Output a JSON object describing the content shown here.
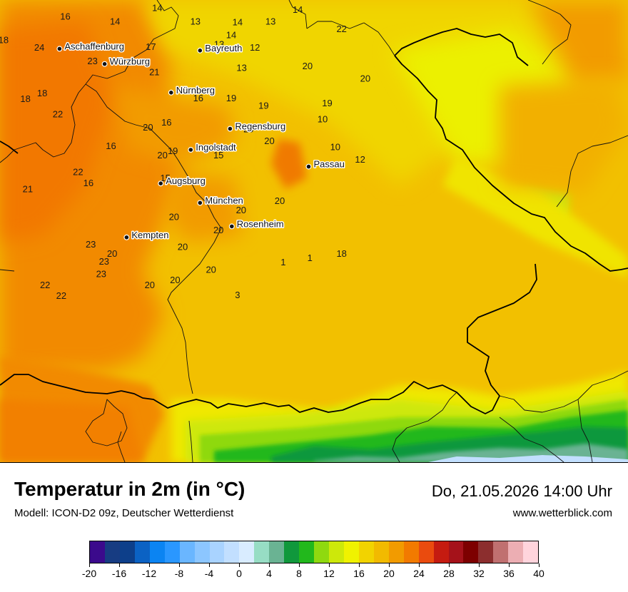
{
  "map": {
    "cities": [
      {
        "name": "Aschaffenburg",
        "lon": 9.15,
        "lat": 49.97
      },
      {
        "name": "Würzburg",
        "lon": 9.93,
        "lat": 49.79
      },
      {
        "name": "Bayreuth",
        "lon": 11.58,
        "lat": 49.95
      },
      {
        "name": "Nürnberg",
        "lon": 11.08,
        "lat": 49.45
      },
      {
        "name": "Regensburg",
        "lon": 12.1,
        "lat": 49.02
      },
      {
        "name": "Ingolstadt",
        "lon": 11.42,
        "lat": 48.77
      },
      {
        "name": "Passau",
        "lon": 13.46,
        "lat": 48.57
      },
      {
        "name": "Augsburg",
        "lon": 10.9,
        "lat": 48.37
      },
      {
        "name": "München",
        "lon": 11.58,
        "lat": 48.14
      },
      {
        "name": "Rosenheim",
        "lon": 12.13,
        "lat": 47.86
      },
      {
        "name": "Kempten",
        "lon": 10.31,
        "lat": 47.73
      }
    ],
    "temperature_labels": [
      {
        "value": "16",
        "lon": 9.25,
        "lat": 50.36
      },
      {
        "value": "14",
        "lon": 10.11,
        "lat": 50.3
      },
      {
        "value": "14",
        "lon": 10.84,
        "lat": 50.46
      },
      {
        "value": "18",
        "lon": 8.18,
        "lat": 50.08
      },
      {
        "value": "24",
        "lon": 8.8,
        "lat": 49.99
      },
      {
        "value": "23",
        "lon": 9.72,
        "lat": 49.83
      },
      {
        "value": "17",
        "lon": 10.73,
        "lat": 50.0
      },
      {
        "value": "21",
        "lon": 10.79,
        "lat": 49.7
      },
      {
        "value": "13",
        "lon": 11.5,
        "lat": 50.3
      },
      {
        "value": "14",
        "lon": 12.23,
        "lat": 50.29
      },
      {
        "value": "13",
        "lon": 12.8,
        "lat": 50.3
      },
      {
        "value": "14",
        "lon": 13.27,
        "lat": 50.44
      },
      {
        "value": "14",
        "lon": 12.12,
        "lat": 50.14
      },
      {
        "value": "13",
        "lon": 11.91,
        "lat": 50.03
      },
      {
        "value": "12",
        "lon": 12.53,
        "lat": 49.99
      },
      {
        "value": "13",
        "lon": 12.3,
        "lat": 49.75
      },
      {
        "value": "20",
        "lon": 13.44,
        "lat": 49.77
      },
      {
        "value": "22",
        "lon": 14.03,
        "lat": 50.21
      },
      {
        "value": "20",
        "lon": 14.44,
        "lat": 49.62
      },
      {
        "value": "18",
        "lon": 8.56,
        "lat": 49.38
      },
      {
        "value": "18",
        "lon": 8.85,
        "lat": 49.45
      },
      {
        "value": "16",
        "lon": 11.55,
        "lat": 49.39
      },
      {
        "value": "19",
        "lon": 12.12,
        "lat": 49.39
      },
      {
        "value": "19",
        "lon": 12.68,
        "lat": 49.3
      },
      {
        "value": "19",
        "lon": 13.78,
        "lat": 49.33
      },
      {
        "value": "22",
        "lon": 9.12,
        "lat": 49.2
      },
      {
        "value": "16",
        "lon": 11.0,
        "lat": 49.1
      },
      {
        "value": "20",
        "lon": 10.68,
        "lat": 49.04
      },
      {
        "value": "10",
        "lon": 13.7,
        "lat": 49.14
      },
      {
        "value": "20",
        "lon": 12.42,
        "lat": 49.02
      },
      {
        "value": "20",
        "lon": 12.78,
        "lat": 48.88
      },
      {
        "value": "10",
        "lon": 13.92,
        "lat": 48.81
      },
      {
        "value": "12",
        "lon": 14.35,
        "lat": 48.66
      },
      {
        "value": "16",
        "lon": 10.04,
        "lat": 48.82
      },
      {
        "value": "20",
        "lon": 10.93,
        "lat": 48.71
      },
      {
        "value": "19",
        "lon": 11.11,
        "lat": 48.76
      },
      {
        "value": "15",
        "lon": 11.9,
        "lat": 48.71
      },
      {
        "value": "22",
        "lon": 9.47,
        "lat": 48.51
      },
      {
        "value": "16",
        "lon": 9.65,
        "lat": 48.38
      },
      {
        "value": "21",
        "lon": 8.6,
        "lat": 48.31
      },
      {
        "value": "15",
        "lon": 10.98,
        "lat": 48.44
      },
      {
        "value": "20",
        "lon": 12.96,
        "lat": 48.17
      },
      {
        "value": "20",
        "lon": 12.29,
        "lat": 48.06
      },
      {
        "value": "20",
        "lon": 11.13,
        "lat": 47.98
      },
      {
        "value": "23",
        "lon": 9.69,
        "lat": 47.65
      },
      {
        "value": "20",
        "lon": 11.28,
        "lat": 47.62
      },
      {
        "value": "20",
        "lon": 11.9,
        "lat": 47.82
      },
      {
        "value": "20",
        "lon": 10.06,
        "lat": 47.54
      },
      {
        "value": "23",
        "lon": 9.92,
        "lat": 47.45
      },
      {
        "value": "23",
        "lon": 9.87,
        "lat": 47.3
      },
      {
        "value": "1",
        "lon": 13.02,
        "lat": 47.44
      },
      {
        "value": "1",
        "lon": 13.48,
        "lat": 47.49
      },
      {
        "value": "18",
        "lon": 14.03,
        "lat": 47.54
      },
      {
        "value": "20",
        "lon": 11.77,
        "lat": 47.35
      },
      {
        "value": "20",
        "lon": 11.15,
        "lat": 47.23
      },
      {
        "value": "20",
        "lon": 10.71,
        "lat": 47.17
      },
      {
        "value": "22",
        "lon": 8.9,
        "lat": 47.17
      },
      {
        "value": "22",
        "lon": 9.18,
        "lat": 47.04
      },
      {
        "value": "3",
        "lon": 12.23,
        "lat": 47.05
      }
    ]
  },
  "header": {
    "title": "Temperatur in 2m (in °C)",
    "subtitle": "Modell: ICON-D2 09z, Deutscher Wetterdienst",
    "datetime": "Do, 21.05.2026 14:00 Uhr",
    "website": "www.wetterblick.com"
  },
  "legend": {
    "colors": [
      "#3b0a8c",
      "#173c82",
      "#0d3f8a",
      "#0b62c4",
      "#0b84f2",
      "#2a97ff",
      "#6ab6ff",
      "#8cc6ff",
      "#a9d3ff",
      "#c2dfff",
      "#d9ecff",
      "#97ddc4",
      "#6ab393",
      "#10983c",
      "#22b81c",
      "#8fd90f",
      "#cde80a",
      "#f0f200",
      "#f2d300",
      "#f2ba00",
      "#f29b00",
      "#f27a00",
      "#ea4b0e",
      "#c51b10",
      "#a5121a",
      "#7d0000",
      "#8c2e2e",
      "#c07070",
      "#ecaeb3",
      "#ffd4dc"
    ],
    "ticks": [
      "-20",
      "-16",
      "-12",
      "-8",
      "-4",
      "0",
      "4",
      "8",
      "12",
      "16",
      "20",
      "24",
      "28",
      "32",
      "36",
      "40"
    ],
    "min": -20,
    "max": 40,
    "step": 2
  }
}
